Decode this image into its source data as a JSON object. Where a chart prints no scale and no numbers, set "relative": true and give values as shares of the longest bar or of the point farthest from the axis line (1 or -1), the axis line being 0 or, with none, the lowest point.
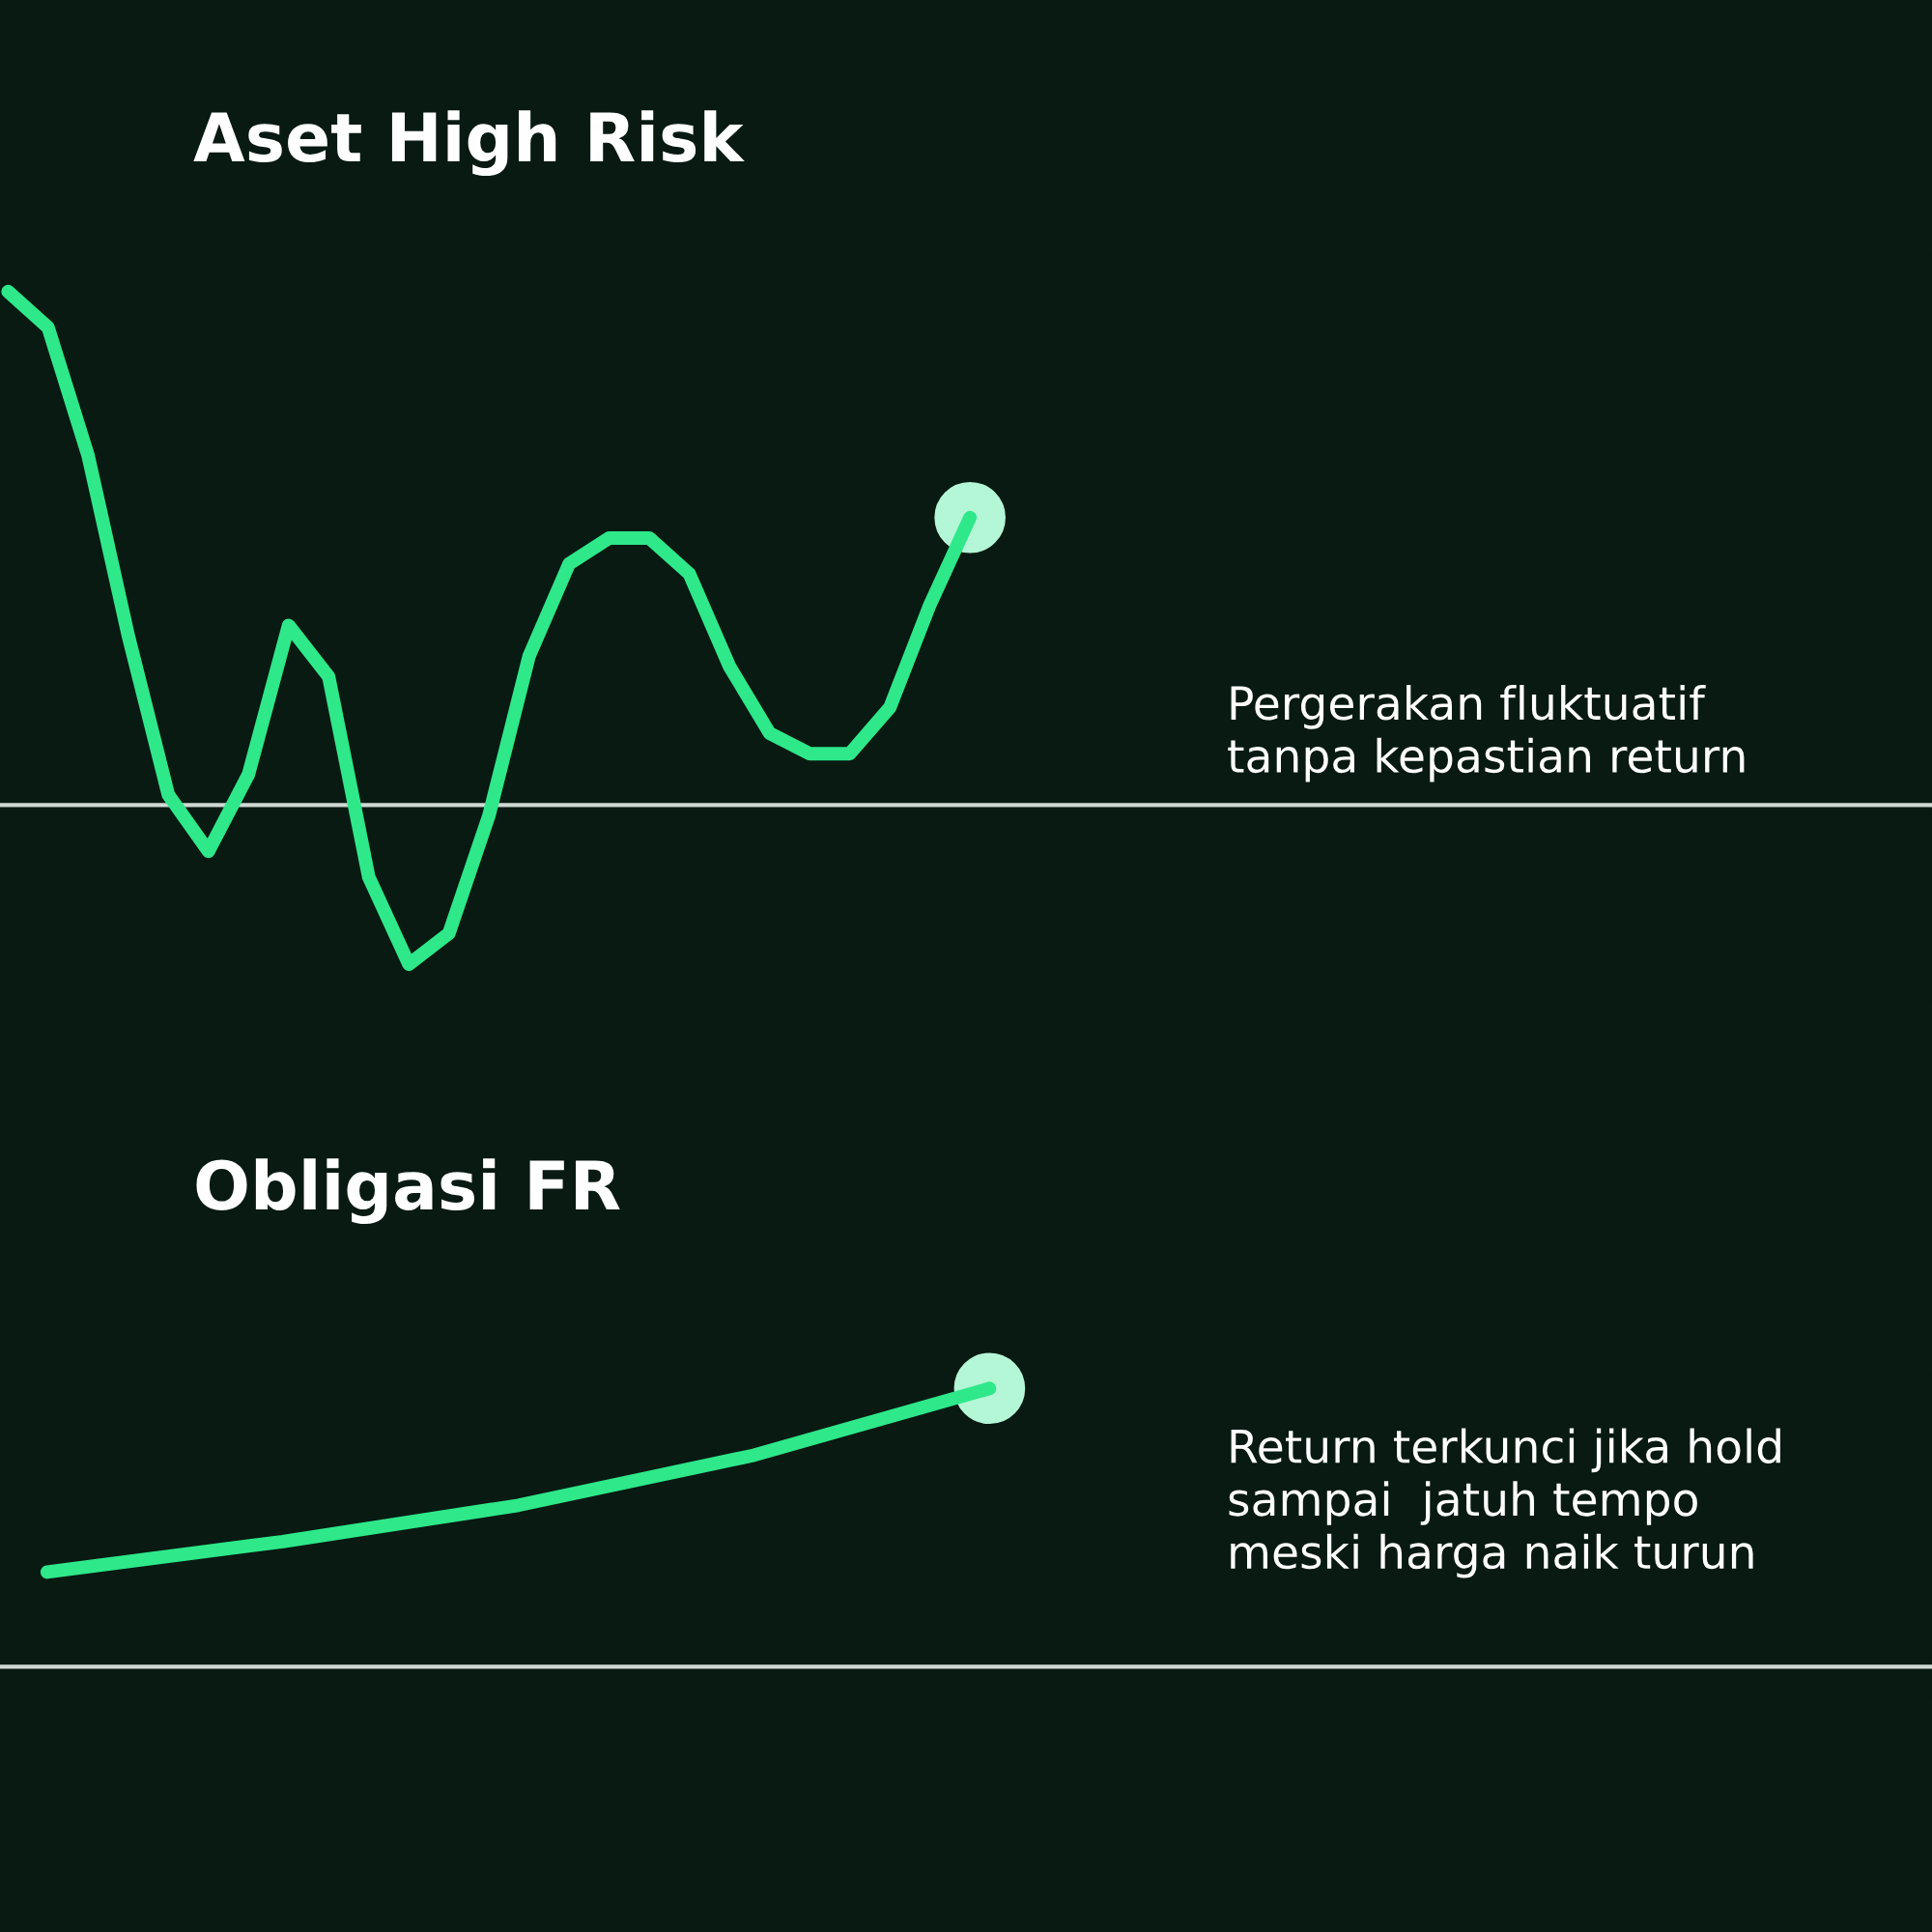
{
  "chart_data": [
    {
      "type": "line",
      "title": "Aset High Risk",
      "relative": true,
      "line_style": "solid",
      "legend": false,
      "tick_labels": false,
      "categories": [
        null,
        null,
        null,
        null,
        null,
        null,
        null,
        null,
        null,
        null,
        null,
        null,
        null,
        null,
        null,
        null,
        null,
        null,
        null,
        null,
        null,
        null,
        null,
        null,
        null
      ],
      "series": [
        {
          "color": "#2ee88a",
          "values": [
            1.0,
            0.93,
            0.68,
            0.33,
            0.02,
            -0.09,
            0.06,
            0.35,
            0.25,
            -0.14,
            -0.31,
            -0.25,
            -0.02,
            0.29,
            0.47,
            0.52,
            0.52,
            0.45,
            0.27,
            0.14,
            0.1,
            0.1,
            0.19,
            0.39,
            0.56
          ]
        }
      ],
      "annotations": [
        "Pergerakan fluktuatif\ntanpa kepastian return"
      ]
    },
    {
      "type": "line",
      "title": "Obligasi FR",
      "relative": true,
      "line_style": "solid",
      "legend": false,
      "tick_labels": false,
      "categories": [
        null,
        null,
        null,
        null,
        null
      ],
      "series": [
        {
          "color": "#2ee88a",
          "values": [
            0.34,
            0.45,
            0.58,
            0.76,
            1.0
          ]
        }
      ],
      "annotations": [
        "Return terkunci jika hold\nsampai  jatuh tempo\nmeski harga naik turun"
      ]
    }
  ]
}
